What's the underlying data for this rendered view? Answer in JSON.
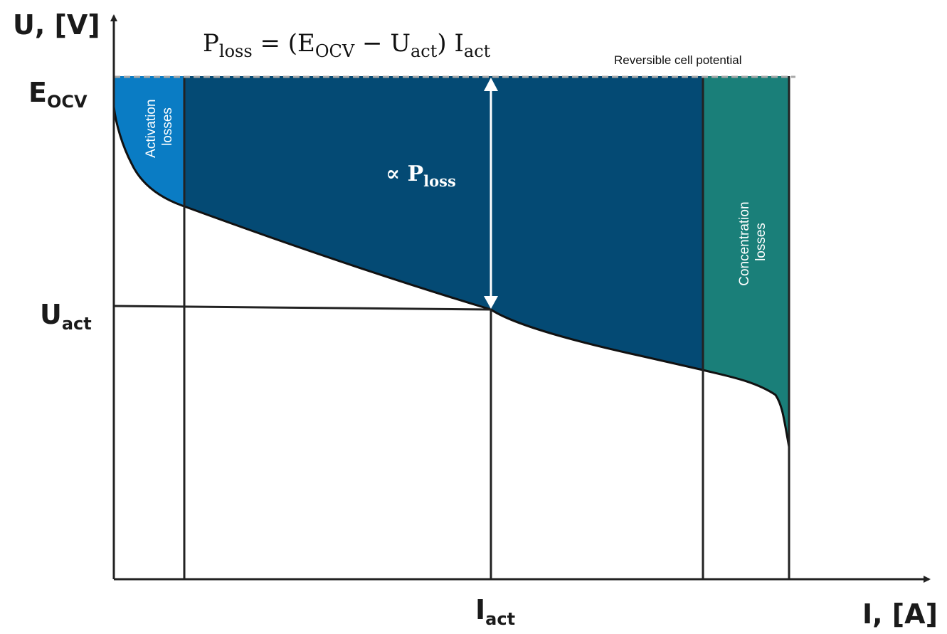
{
  "axes": {
    "y_label": "U, [V]",
    "x_label": "I, [A]"
  },
  "ticks": {
    "e_ocv_main": "E",
    "e_ocv_sub": "OCV",
    "u_act_main": "U",
    "u_act_sub": "act",
    "i_act_main": "I",
    "i_act_sub": "act"
  },
  "formula": {
    "p": "P",
    "p_sub": "loss",
    "equals_open": " = (E",
    "e_sub": "OCV",
    "minus": " − U",
    "u_sub": "act",
    "close": ") I",
    "i_sub": "act"
  },
  "annotations": {
    "reversible": "Reversible cell potential",
    "proportional": "∝ P",
    "proportional_sub": "loss"
  },
  "regions": {
    "activation": [
      "Activation",
      "losses"
    ],
    "concentration": [
      "Concentration",
      "losses"
    ]
  },
  "colors": {
    "activation": "#0a7cc4",
    "ohmic": "#044a74",
    "concentration": "#1a7f79",
    "axis": "#222222",
    "curve": "#111111",
    "dashed": "#a8a8a8"
  }
}
